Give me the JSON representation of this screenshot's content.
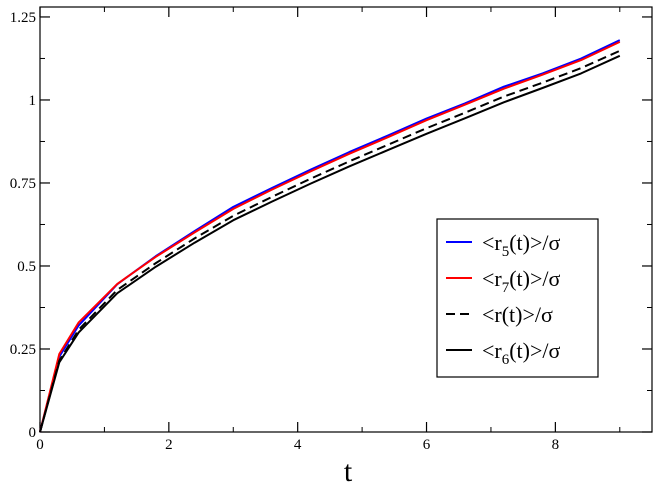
{
  "chart_data": {
    "type": "line",
    "title": "",
    "xlabel": "t",
    "ylabel": "",
    "xlim": [
      0,
      9.5
    ],
    "ylim": [
      0,
      1.28
    ],
    "xticks": [
      0,
      2,
      4,
      6,
      8
    ],
    "xtick_labels": [
      "0",
      "2",
      "4",
      "6",
      "8"
    ],
    "yticks": [
      0,
      0.25,
      0.5,
      0.75,
      1,
      1.25
    ],
    "ytick_labels": [
      "0",
      "0.25",
      "0.5",
      "0.75",
      "1",
      "1.25"
    ],
    "grid": false,
    "legend_position": "right",
    "x": [
      0,
      0.3,
      0.6,
      1.2,
      1.8,
      2.4,
      3.0,
      3.6,
      4.2,
      4.8,
      5.4,
      6.0,
      6.6,
      7.2,
      7.8,
      8.4,
      9.0
    ],
    "series": [
      {
        "legend": {
          "prefix": "<r",
          "sub": "5",
          "suffix": "(t)>/σ"
        },
        "color": "#0000ff",
        "dash": "solid",
        "values": [
          0,
          0.227,
          0.321,
          0.445,
          0.53,
          0.605,
          0.678,
          0.735,
          0.79,
          0.843,
          0.893,
          0.944,
          0.99,
          1.04,
          1.08,
          1.125,
          1.18
        ]
      },
      {
        "legend": {
          "prefix": "<r",
          "sub": "7",
          "suffix": "(t)>/σ"
        },
        "color": "#ff0000",
        "dash": "solid",
        "values": [
          0,
          0.235,
          0.33,
          0.446,
          0.528,
          0.601,
          0.672,
          0.73,
          0.785,
          0.838,
          0.888,
          0.939,
          0.986,
          1.034,
          1.076,
          1.12,
          1.175
        ]
      },
      {
        "legend": {
          "prefix": "<r(t)>/σ",
          "sub": "",
          "suffix": ""
        },
        "color": "#000000",
        "dash": "dashed",
        "values": [
          0,
          0.215,
          0.308,
          0.428,
          0.509,
          0.583,
          0.651,
          0.708,
          0.763,
          0.815,
          0.865,
          0.915,
          0.962,
          1.01,
          1.052,
          1.096,
          1.148
        ]
      },
      {
        "legend": {
          "prefix": "<r",
          "sub": "6",
          "suffix": "(t)>/σ"
        },
        "color": "#000000",
        "dash": "solid",
        "values": [
          0,
          0.21,
          0.3,
          0.418,
          0.498,
          0.57,
          0.638,
          0.694,
          0.748,
          0.8,
          0.849,
          0.898,
          0.945,
          0.993,
          1.036,
          1.08,
          1.133
        ]
      }
    ]
  }
}
